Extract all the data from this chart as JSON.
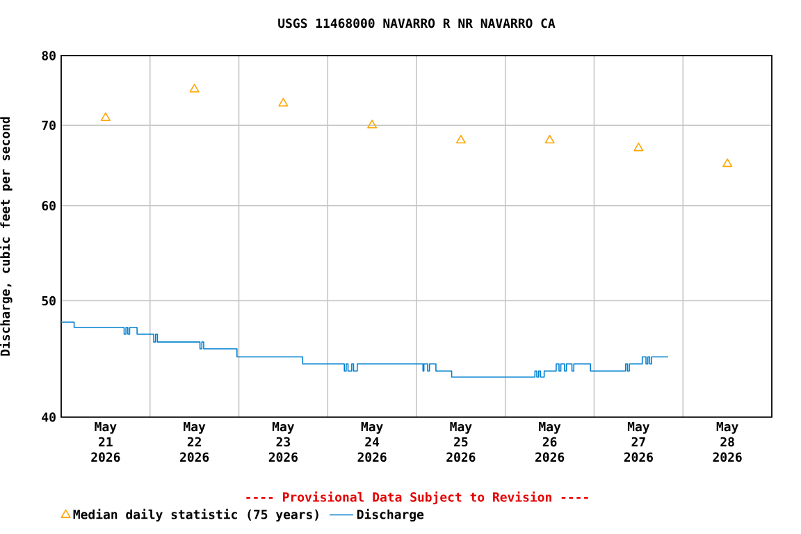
{
  "chart_data": {
    "type": "line",
    "title": "USGS 11468000 NAVARRO R NR NAVARRO CA",
    "ylabel": "Discharge, cubic feet per second",
    "annotations": [
      "---- Provisional Data Subject to Revision ----"
    ],
    "xlim": [
      "2026-05-21",
      "2026-05-29"
    ],
    "xticks": [
      {
        "value": "2026-05-21T12:00",
        "label": "May 21 2026"
      },
      {
        "value": "2026-05-22T12:00",
        "label": "May 22 2026"
      },
      {
        "value": "2026-05-23T12:00",
        "label": "May 23 2026"
      },
      {
        "value": "2026-05-24T12:00",
        "label": "May 24 2026"
      },
      {
        "value": "2026-05-25T12:00",
        "label": "May 25 2026"
      },
      {
        "value": "2026-05-26T12:00",
        "label": "May 26 2026"
      },
      {
        "value": "2026-05-27T12:00",
        "label": "May 27 2026"
      },
      {
        "value": "2026-05-28T12:00",
        "label": "May 28 2026"
      },
      {
        "value": "2026-05-22",
        "label": null
      },
      {
        "value": "2026-05-23",
        "label": null
      },
      {
        "value": "2026-05-24",
        "label": null
      },
      {
        "value": "2026-05-25",
        "label": null
      },
      {
        "value": "2026-05-26",
        "label": null
      },
      {
        "value": "2026-05-27",
        "label": null
      },
      {
        "value": "2026-05-28",
        "label": null
      }
    ],
    "ylim": [
      40,
      80
    ],
    "yticks": [
      40,
      50,
      60,
      70,
      80
    ],
    "log": true,
    "grid": true,
    "legend": "bottom",
    "series": [
      {
        "name": "Median daily statistic (75 years)",
        "type": "scatter",
        "marker": "triangle",
        "color": "#ffa500",
        "x": [
          "2026-05-21T12:00",
          "2026-05-22T12:00",
          "2026-05-23T12:00",
          "2026-05-24T12:00",
          "2026-05-25T12:00",
          "2026-05-26T12:00",
          "2026-05-27T12:00",
          "2026-05-28T12:00"
        ],
        "values": [
          71,
          75,
          73,
          70,
          68,
          68,
          67,
          65
        ]
      },
      {
        "name": "Discharge",
        "type": "step",
        "marker": "none",
        "color": "#0080d0",
        "x": [
          "2026-05-21T00:00",
          "2026-05-21T03:30",
          "2026-05-21T17:00",
          "2026-05-21T17:30",
          "2026-05-21T18:00",
          "2026-05-21T18:30",
          "2026-05-21T20:30",
          "2026-05-22T01:00",
          "2026-05-22T01:30",
          "2026-05-22T02:00",
          "2026-05-22T13:30",
          "2026-05-22T14:00",
          "2026-05-22T14:30",
          "2026-05-22T23:30",
          "2026-05-23T17:15",
          "2026-05-24T04:30",
          "2026-05-24T05:00",
          "2026-05-24T05:30",
          "2026-05-24T06:30",
          "2026-05-24T07:00",
          "2026-05-24T08:00",
          "2026-05-25T01:45",
          "2026-05-25T02:00",
          "2026-05-25T03:00",
          "2026-05-25T03:30",
          "2026-05-25T05:15",
          "2026-05-25T09:30",
          "2026-05-26T08:00",
          "2026-05-26T08:30",
          "2026-05-26T09:00",
          "2026-05-26T09:30",
          "2026-05-26T10:30",
          "2026-05-26T13:45",
          "2026-05-26T14:30",
          "2026-05-26T15:00",
          "2026-05-26T16:00",
          "2026-05-26T16:30",
          "2026-05-26T18:00",
          "2026-05-26T18:30",
          "2026-05-26T23:00",
          "2026-05-27T08:30",
          "2026-05-27T09:00",
          "2026-05-27T09:30",
          "2026-05-27T13:00",
          "2026-05-27T14:00",
          "2026-05-27T14:30",
          "2026-05-27T15:00",
          "2026-05-27T15:30",
          "2026-05-27T20:00"
        ],
        "values": [
          48.0,
          47.5,
          46.9,
          47.5,
          46.9,
          47.5,
          46.9,
          46.2,
          46.9,
          46.2,
          45.6,
          46.2,
          45.6,
          44.9,
          44.3,
          43.7,
          44.3,
          43.7,
          44.3,
          43.7,
          44.3,
          43.7,
          44.3,
          43.7,
          44.3,
          43.7,
          43.2,
          43.7,
          43.2,
          43.7,
          43.2,
          43.7,
          44.3,
          43.7,
          44.3,
          43.7,
          44.3,
          43.7,
          44.3,
          43.7,
          44.3,
          43.7,
          44.3,
          44.9,
          44.3,
          44.9,
          44.3,
          44.9,
          44.9
        ]
      }
    ]
  }
}
